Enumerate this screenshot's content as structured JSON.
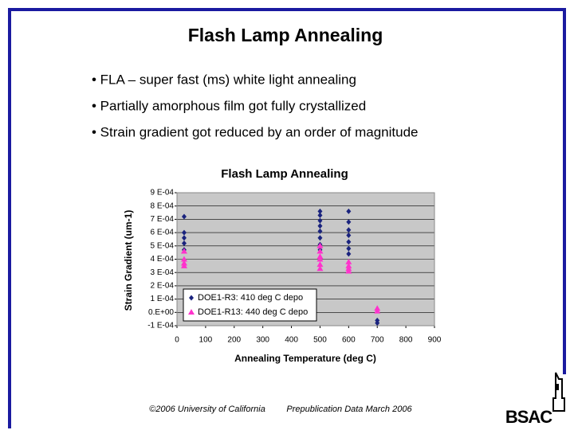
{
  "slide": {
    "title": "Flash Lamp Annealing",
    "bullets": [
      "• FLA – super fast (ms) white light annealing",
      "• Partially amorphous film got fully crystallized",
      "• Strain gradient got reduced by an order of magnitude"
    ],
    "footer": [
      "©2006 University of California",
      "Prepublication Data March 2006"
    ],
    "logo": "BSAC"
  },
  "chart_data": {
    "type": "scatter",
    "title": "Flash Lamp Annealing",
    "x_label": "Annealing Temperature (deg C)",
    "y_label": "Strain Gradient (um-1)",
    "xlim": [
      0,
      900
    ],
    "xticks": [
      0,
      100,
      200,
      300,
      400,
      500,
      600,
      700,
      800,
      900
    ],
    "ylim": [
      -0.0001,
      0.0009
    ],
    "yticks": [
      {
        "value": 0.0009,
        "label": "9 E-04"
      },
      {
        "value": 0.0008,
        "label": "8 E-04"
      },
      {
        "value": 0.0007,
        "label": "7 E-04"
      },
      {
        "value": 0.0006,
        "label": "6 E-04"
      },
      {
        "value": 0.0005,
        "label": "5 E-04"
      },
      {
        "value": 0.0004,
        "label": "4 E-04"
      },
      {
        "value": 0.0003,
        "label": "3 E-04"
      },
      {
        "value": 0.0002,
        "label": "2 E-04"
      },
      {
        "value": 0.0001,
        "label": "1 E-04"
      },
      {
        "value": 0,
        "label": "0.E+00"
      },
      {
        "value": -0.0001,
        "label": "-1 E-04"
      }
    ],
    "grid": true,
    "legend": "bottom-left",
    "series": [
      {
        "name": "DOE1-R3: 410 deg C depo",
        "color": "#1a237e",
        "marker": "diamond",
        "x": [
          25,
          25,
          25,
          25,
          25,
          500,
          500,
          500,
          500,
          500,
          500,
          500,
          500,
          600,
          600,
          600,
          600,
          600,
          600,
          600,
          700,
          700
        ],
        "values": [
          0.00072,
          0.0006,
          0.00056,
          0.00052,
          0.00047,
          0.00076,
          0.00073,
          0.00069,
          0.00065,
          0.00061,
          0.00056,
          0.00051,
          0.00047,
          0.00076,
          0.00068,
          0.00062,
          0.00058,
          0.00053,
          0.00048,
          0.00044,
          -6e-05,
          -8e-05
        ]
      },
      {
        "name": "DOE1-R13: 440 deg C depo",
        "color": "#ff33cc",
        "marker": "triangle",
        "x": [
          25,
          25,
          25,
          25,
          500,
          500,
          500,
          500,
          500,
          500,
          600,
          600,
          600,
          600,
          700,
          700
        ],
        "values": [
          0.00046,
          0.0004,
          0.00037,
          0.00035,
          0.0005,
          0.00046,
          0.00042,
          0.0004,
          0.00036,
          0.00033,
          0.00038,
          0.00035,
          0.00033,
          0.00031,
          3e-05,
          1e-05
        ]
      }
    ]
  }
}
